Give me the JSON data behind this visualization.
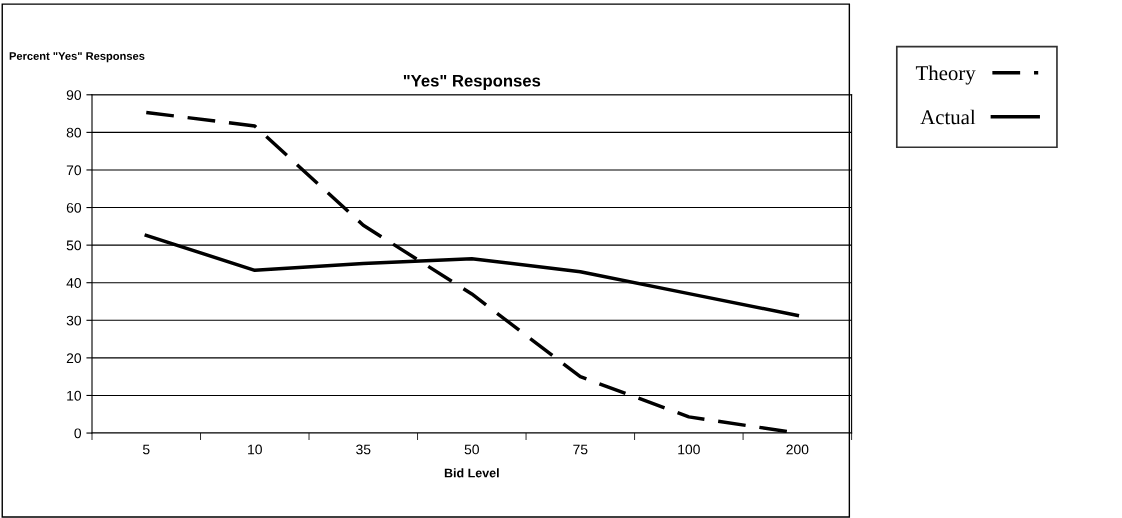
{
  "chart_data": {
    "type": "line",
    "title": "\"Yes\" Responses",
    "xlabel": "Bid Level",
    "ylabel": "Percent \"Yes\" Responses",
    "categories": [
      "5",
      "10",
      "35",
      "50",
      "75",
      "100",
      "200"
    ],
    "series": [
      {
        "name": "Theory",
        "color": "#000000",
        "line_style": "dashed",
        "values": [
          85.3,
          81.7,
          55.3,
          37,
          15,
          4.3,
          0
        ]
      },
      {
        "name": "Actual",
        "color": "#000000",
        "line_style": "solid",
        "values": [
          52.6,
          43.3,
          45.1,
          46.4,
          42.9,
          37.1,
          31.3
        ]
      }
    ],
    "ylim": [
      0,
      90
    ],
    "yticks": [
      0,
      10,
      20,
      30,
      40,
      50,
      60,
      70,
      80,
      90
    ],
    "grid": "y",
    "legend": "right",
    "marker": "none"
  }
}
